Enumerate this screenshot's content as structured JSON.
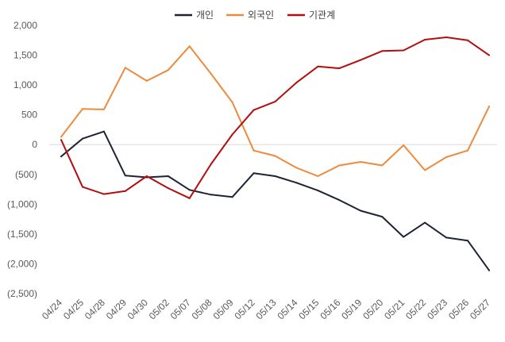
{
  "chart_data": {
    "type": "line",
    "categories": [
      "04/24",
      "04/25",
      "04/28",
      "04/29",
      "04/30",
      "05/02",
      "05/07",
      "05/08",
      "05/09",
      "05/12",
      "05/13",
      "05/14",
      "05/15",
      "05/16",
      "05/19",
      "05/20",
      "05/21",
      "05/22",
      "05/23",
      "05/26",
      "05/27"
    ],
    "series": [
      {
        "name": "개인",
        "color": "#1e2433",
        "values": [
          -200,
          100,
          220,
          -520,
          -550,
          -530,
          -760,
          -840,
          -880,
          -480,
          -530,
          -640,
          -770,
          -930,
          -1110,
          -1210,
          -1550,
          -1310,
          -1560,
          -1610,
          -2110
        ]
      },
      {
        "name": "외국인",
        "color": "#ee8a3c",
        "values": [
          130,
          600,
          590,
          1290,
          1070,
          1250,
          1650,
          1190,
          710,
          -100,
          -190,
          -390,
          -530,
          -350,
          -290,
          -350,
          -10,
          -430,
          -210,
          -100,
          640
        ]
      },
      {
        "name": "기관계",
        "color": "#b30e0e",
        "values": [
          80,
          -710,
          -830,
          -780,
          -530,
          -730,
          -900,
          -330,
          170,
          580,
          720,
          1040,
          1310,
          1280,
          1420,
          1570,
          1580,
          1760,
          1800,
          1750,
          1500
        ]
      }
    ],
    "y_ticks": [
      2000,
      1500,
      1000,
      500,
      0,
      -500,
      -1000,
      -1500,
      -2000,
      -2500
    ],
    "y_tick_labels": [
      "2,000",
      "1,500",
      "1,000",
      "500",
      "0",
      "(500)",
      "(1,000)",
      "(1,500)",
      "(2,000)",
      "(2,500)"
    ],
    "ylim": [
      -2500,
      2000
    ],
    "grid": false,
    "legend_position": "top-center"
  }
}
